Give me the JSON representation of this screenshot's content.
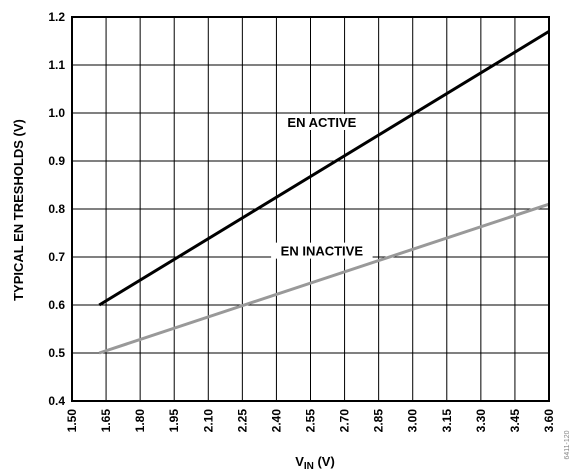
{
  "chart_data": {
    "type": "line",
    "xlabel": {
      "main": "V",
      "sub": "IN",
      "unit": " (V)"
    },
    "ylabel": "TYPICAL EN TRESHOLDS (V)",
    "xlim": [
      1.5,
      3.6
    ],
    "ylim": [
      0.4,
      1.2
    ],
    "x_ticks": [
      "1.50",
      "1.65",
      "1.80",
      "1.95",
      "2.10",
      "2.25",
      "2.40",
      "2.55",
      "2.70",
      "2.85",
      "3.00",
      "3.15",
      "3.30",
      "3.45",
      "3.60"
    ],
    "y_ticks": [
      "0.4",
      "0.5",
      "0.6",
      "0.7",
      "0.8",
      "0.9",
      "1.0",
      "1.1",
      "1.2"
    ],
    "grid": true,
    "series": [
      {
        "name": "EN ACTIVE",
        "color": "#000000",
        "x": [
          1.62,
          3.6
        ],
        "y": [
          0.6,
          1.17
        ]
      },
      {
        "name": "EN INACTIVE",
        "color": "#999999",
        "x": [
          1.62,
          3.6
        ],
        "y": [
          0.5,
          0.81
        ]
      }
    ],
    "figure_id": "6411-120"
  }
}
